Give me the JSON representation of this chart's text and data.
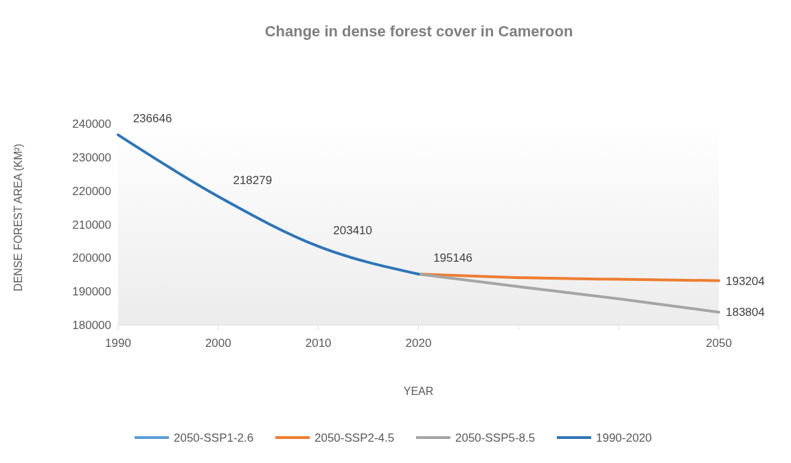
{
  "chart_data": {
    "type": "line",
    "title": "Change in dense forest cover in Cameroon",
    "xlabel": "YEAR",
    "ylabel": "DENSE FOREST AREA (KM²)",
    "categories": [
      "1990",
      "2000",
      "2010",
      "2020",
      null,
      null,
      "2050"
    ],
    "series": [
      {
        "name": "2050-SSP1-2.6",
        "color": "#5b9bd5",
        "values": [
          null,
          null,
          null,
          null,
          null,
          null,
          null
        ]
      },
      {
        "name": "2050-SSP2-4.5",
        "color": "#ed7d31",
        "values": [
          null,
          null,
          null,
          195146,
          194100,
          193600,
          193204
        ],
        "value_labels": [
          null,
          null,
          null,
          null,
          null,
          null,
          "193204"
        ]
      },
      {
        "name": "2050-SSP5-8.5",
        "color": "#a5a5a5",
        "values": [
          null,
          null,
          null,
          195146,
          191400,
          187800,
          183804
        ],
        "value_labels": [
          null,
          null,
          null,
          null,
          null,
          null,
          "183804"
        ]
      },
      {
        "name": "1990-2020",
        "color": "#2e75b6",
        "values": [
          236646,
          218279,
          203410,
          195146,
          null,
          null,
          null
        ],
        "value_labels": [
          "236646",
          "218279",
          "203410",
          "195146",
          null,
          null,
          null
        ]
      }
    ],
    "ylim": [
      180000,
      240000
    ],
    "yticks": [
      180000,
      190000,
      200000,
      210000,
      220000,
      230000,
      240000
    ],
    "legend": "bottom",
    "line_style": "solid",
    "marker": "none"
  }
}
